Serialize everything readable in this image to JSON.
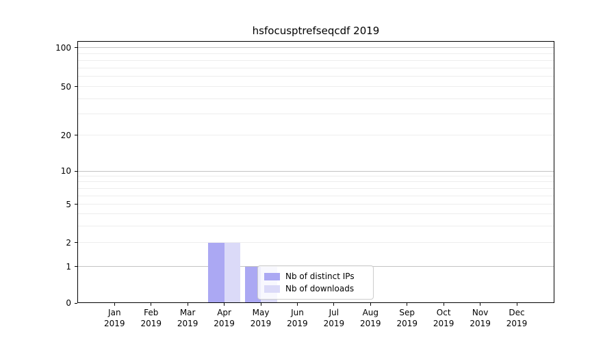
{
  "figure": {
    "background": "#ffffff"
  },
  "chart_data": {
    "type": "bar",
    "title": "hsfocusptrefseqcdf 2019",
    "categories": [
      "Jan",
      "Feb",
      "Mar",
      "Apr",
      "May",
      "Jun",
      "Jul",
      "Aug",
      "Sep",
      "Oct",
      "Nov",
      "Dec"
    ],
    "category_year": "2019",
    "series": [
      {
        "name": "Nb of distinct IPs",
        "color": "#aba8f3",
        "values": [
          0,
          0,
          0,
          2,
          1,
          0,
          0,
          0,
          0,
          0,
          0,
          0
        ]
      },
      {
        "name": "Nb of downloads",
        "color": "#dbdaf8",
        "values": [
          0,
          0,
          0,
          2,
          1,
          0,
          0,
          0,
          0,
          0,
          0,
          0
        ]
      }
    ],
    "yticks": [
      0,
      1,
      2,
      5,
      10,
      20,
      50,
      100
    ],
    "minor_grid_values": [
      2,
      3,
      4,
      5,
      6,
      7,
      8,
      9,
      20,
      30,
      40,
      50,
      60,
      70,
      80,
      90
    ],
    "major_grid_values": [
      1,
      10,
      100
    ],
    "ylim": [
      0,
      115
    ],
    "scale": "symlog",
    "grid": "horizontal",
    "legend_position": "lower-center",
    "colors": {
      "major_grid": "#c3c3c3",
      "minor_grid": "#ededed",
      "spine": "#000000",
      "text": "#000000"
    }
  }
}
